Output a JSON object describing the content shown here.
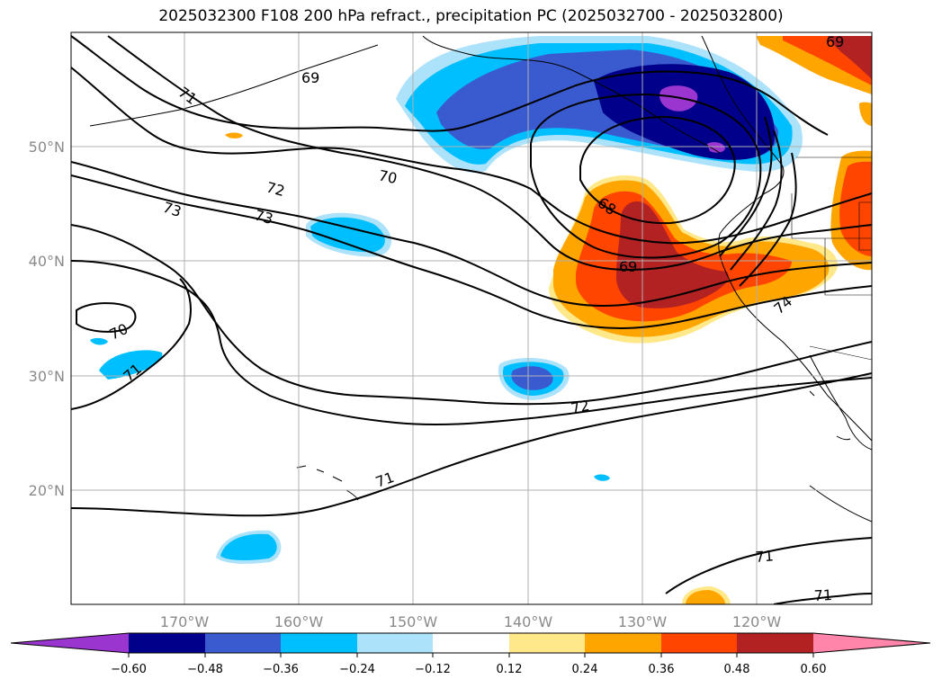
{
  "title": "2025032300 F108 200 hPa refract., precipitation PC (2025032700 - 2025032800)",
  "lat_labels": [
    "50°N",
    "40°N",
    "30°N",
    "20°N"
  ],
  "lon_labels": [
    "170°W",
    "160°W",
    "150°W",
    "140°W",
    "130°W",
    "120°W"
  ],
  "contour_labels": [
    "71",
    "69",
    "70",
    "72",
    "73",
    "73",
    "68",
    "69",
    "70",
    "71",
    "72",
    "71",
    "71",
    "71",
    "69",
    "74"
  ],
  "colorbar": {
    "ticks": [
      "−0.60",
      "−0.48",
      "−0.36",
      "−0.24",
      "−0.12",
      "0.12",
      "0.24",
      "0.36",
      "0.48",
      "0.60"
    ],
    "colors": [
      "#9a35cf",
      "#00008b",
      "#3a5bcf",
      "#00bfff",
      "#ade2fb",
      "#ffffff",
      "#ffe88a",
      "#ffa500",
      "#ff4500",
      "#b22222",
      "#ff85aa"
    ]
  },
  "colors": {
    "grid": "#b0b0b0",
    "contour": "#000000"
  }
}
